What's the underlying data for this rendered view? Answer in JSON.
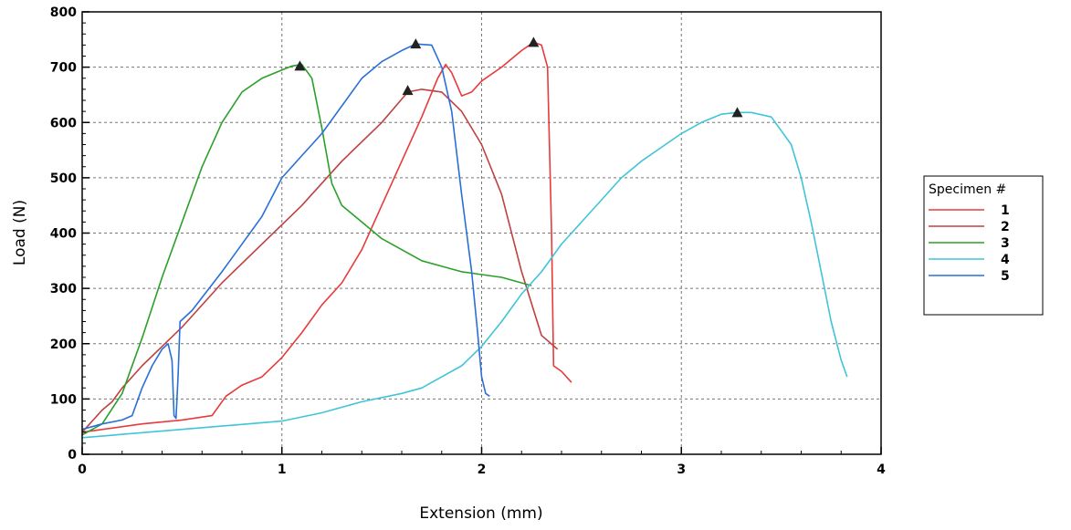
{
  "chart_data": {
    "type": "line",
    "xlabel": "Extension (mm)",
    "ylabel": "Load (N)",
    "xlim": [
      0,
      4
    ],
    "ylim": [
      0,
      800
    ],
    "x_ticks": [
      "0",
      "1",
      "2",
      "3",
      "4"
    ],
    "y_ticks": [
      "0",
      "100",
      "200",
      "300",
      "400",
      "500",
      "600",
      "700",
      "800"
    ],
    "grid": true,
    "legend": {
      "title": "Specimen #",
      "placement": "right"
    },
    "series": [
      {
        "name": "1",
        "color": "#e83a3a",
        "points": [
          [
            0,
            40
          ],
          [
            0.3,
            55
          ],
          [
            0.5,
            62
          ],
          [
            0.65,
            70
          ],
          [
            0.72,
            105
          ],
          [
            0.8,
            125
          ],
          [
            0.9,
            140
          ],
          [
            1.0,
            175
          ],
          [
            1.1,
            220
          ],
          [
            1.2,
            270
          ],
          [
            1.3,
            310
          ],
          [
            1.4,
            370
          ],
          [
            1.5,
            450
          ],
          [
            1.6,
            530
          ],
          [
            1.7,
            610
          ],
          [
            1.78,
            680
          ],
          [
            1.82,
            705
          ],
          [
            1.85,
            690
          ],
          [
            1.9,
            648
          ],
          [
            1.95,
            655
          ],
          [
            2.0,
            675
          ],
          [
            2.1,
            700
          ],
          [
            2.2,
            730
          ],
          [
            2.26,
            745
          ],
          [
            2.3,
            740
          ],
          [
            2.33,
            700
          ],
          [
            2.35,
            400
          ],
          [
            2.36,
            160
          ],
          [
            2.4,
            150
          ],
          [
            2.45,
            130
          ]
        ],
        "peak": [
          2.26,
          745
        ]
      },
      {
        "name": "2",
        "color": "#c04040",
        "points": [
          [
            0,
            40
          ],
          [
            0.1,
            80
          ],
          [
            0.15,
            95
          ],
          [
            0.2,
            120
          ],
          [
            0.3,
            160
          ],
          [
            0.5,
            230
          ],
          [
            0.7,
            310
          ],
          [
            0.9,
            380
          ],
          [
            1.1,
            450
          ],
          [
            1.3,
            530
          ],
          [
            1.5,
            600
          ],
          [
            1.63,
            655
          ],
          [
            1.7,
            660
          ],
          [
            1.8,
            655
          ],
          [
            1.9,
            620
          ],
          [
            2.0,
            560
          ],
          [
            2.1,
            470
          ],
          [
            2.2,
            330
          ],
          [
            2.3,
            215
          ],
          [
            2.38,
            190
          ]
        ],
        "peak": [
          1.63,
          658
        ]
      },
      {
        "name": "3",
        "color": "#2aa02a",
        "points": [
          [
            0,
            35
          ],
          [
            0.1,
            55
          ],
          [
            0.2,
            110
          ],
          [
            0.3,
            210
          ],
          [
            0.4,
            320
          ],
          [
            0.5,
            420
          ],
          [
            0.6,
            520
          ],
          [
            0.7,
            600
          ],
          [
            0.8,
            655
          ],
          [
            0.9,
            680
          ],
          [
            1.0,
            695
          ],
          [
            1.05,
            702
          ],
          [
            1.1,
            705
          ],
          [
            1.15,
            680
          ],
          [
            1.2,
            590
          ],
          [
            1.25,
            490
          ],
          [
            1.3,
            450
          ],
          [
            1.4,
            420
          ],
          [
            1.5,
            390
          ],
          [
            1.6,
            370
          ],
          [
            1.7,
            350
          ],
          [
            1.8,
            340
          ],
          [
            1.9,
            330
          ],
          [
            2.0,
            325
          ],
          [
            2.1,
            320
          ],
          [
            2.2,
            310
          ],
          [
            2.25,
            305
          ]
        ],
        "peak": [
          1.09,
          702
        ]
      },
      {
        "name": "4",
        "color": "#40c4d8",
        "points": [
          [
            0,
            30
          ],
          [
            0.5,
            45
          ],
          [
            1.0,
            60
          ],
          [
            1.2,
            75
          ],
          [
            1.4,
            95
          ],
          [
            1.6,
            110
          ],
          [
            1.7,
            120
          ],
          [
            1.8,
            140
          ],
          [
            1.9,
            160
          ],
          [
            2.0,
            195
          ],
          [
            2.1,
            240
          ],
          [
            2.2,
            290
          ],
          [
            2.3,
            330
          ],
          [
            2.4,
            380
          ],
          [
            2.5,
            420
          ],
          [
            2.6,
            460
          ],
          [
            2.7,
            500
          ],
          [
            2.8,
            530
          ],
          [
            2.9,
            555
          ],
          [
            3.0,
            580
          ],
          [
            3.1,
            600
          ],
          [
            3.2,
            615
          ],
          [
            3.28,
            618
          ],
          [
            3.35,
            618
          ],
          [
            3.45,
            610
          ],
          [
            3.55,
            560
          ],
          [
            3.6,
            500
          ],
          [
            3.65,
            420
          ],
          [
            3.7,
            330
          ],
          [
            3.75,
            240
          ],
          [
            3.8,
            170
          ],
          [
            3.83,
            140
          ]
        ],
        "peak": [
          3.28,
          618
        ]
      },
      {
        "name": "5",
        "color": "#2a6fd6",
        "points": [
          [
            0,
            45
          ],
          [
            0.1,
            55
          ],
          [
            0.2,
            62
          ],
          [
            0.25,
            70
          ],
          [
            0.3,
            120
          ],
          [
            0.35,
            160
          ],
          [
            0.4,
            190
          ],
          [
            0.43,
            200
          ],
          [
            0.45,
            170
          ],
          [
            0.46,
            70
          ],
          [
            0.47,
            65
          ],
          [
            0.48,
            140
          ],
          [
            0.49,
            240
          ],
          [
            0.55,
            260
          ],
          [
            0.7,
            330
          ],
          [
            0.9,
            430
          ],
          [
            1.0,
            500
          ],
          [
            1.1,
            540
          ],
          [
            1.2,
            580
          ],
          [
            1.3,
            630
          ],
          [
            1.4,
            680
          ],
          [
            1.5,
            710
          ],
          [
            1.6,
            730
          ],
          [
            1.67,
            742
          ],
          [
            1.75,
            740
          ],
          [
            1.8,
            700
          ],
          [
            1.85,
            620
          ],
          [
            1.9,
            470
          ],
          [
            1.95,
            330
          ],
          [
            1.98,
            220
          ],
          [
            2.0,
            140
          ],
          [
            2.02,
            110
          ],
          [
            2.04,
            105
          ]
        ],
        "peak": [
          1.67,
          742
        ]
      }
    ]
  }
}
